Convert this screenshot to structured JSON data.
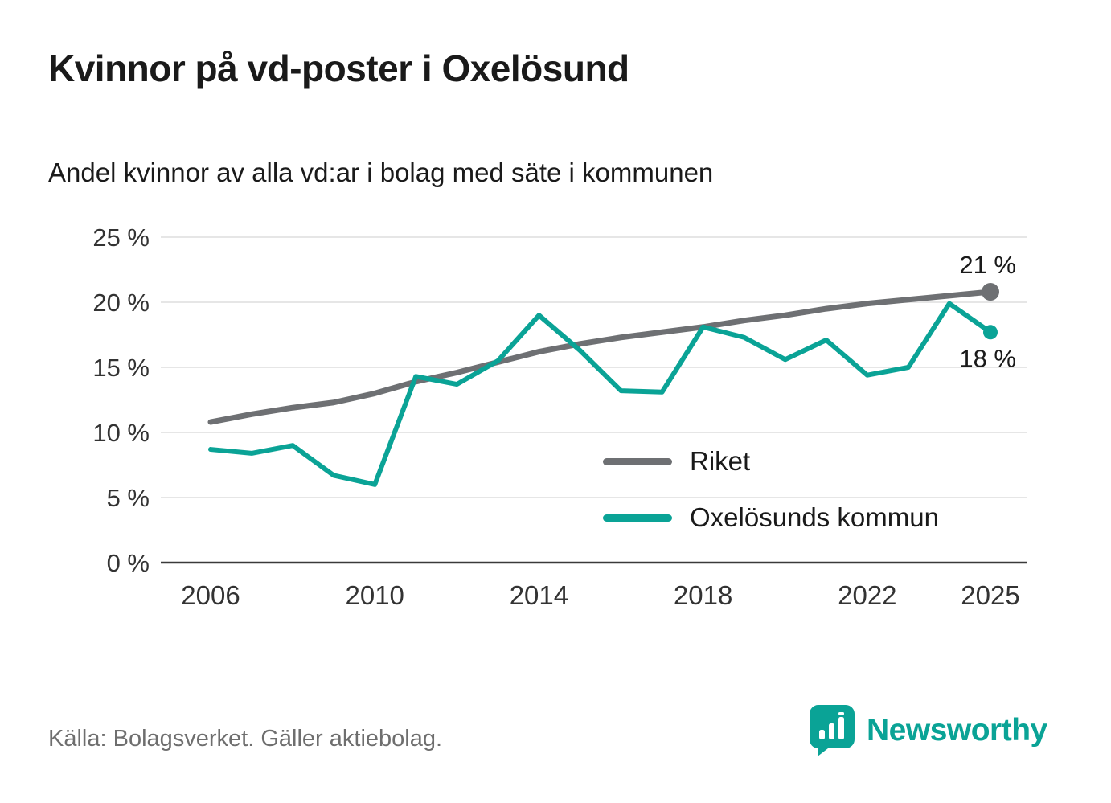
{
  "title": "Kvinnor på vd-poster i Oxelösund",
  "subtitle": "Andel kvinnor av alla vd:ar i bolag med säte i kommunen",
  "source": "Källa: Bolagsverket. Gäller aktiebolag.",
  "brand": {
    "name": "Newsworthy"
  },
  "colors": {
    "riket": "#6e7073",
    "kommun": "#0aa396",
    "grid": "#dddddd",
    "axis_line": "#3a3a3a",
    "tick_text": "#333333",
    "annotation_text": "#1a1a1a",
    "brand_teal": "#0aa396"
  },
  "chart_data": {
    "type": "line",
    "x": [
      2006,
      2007,
      2008,
      2009,
      2010,
      2011,
      2012,
      2013,
      2014,
      2015,
      2016,
      2017,
      2018,
      2019,
      2020,
      2021,
      2022,
      2023,
      2024,
      2025
    ],
    "series": [
      {
        "name": "Riket",
        "color_key": "riket",
        "stroke_width": 7,
        "dot_radius": 11,
        "end_label": "21 %",
        "end_label_side": "above",
        "values": [
          10.8,
          11.4,
          11.9,
          12.3,
          13.0,
          13.9,
          14.6,
          15.4,
          16.2,
          16.8,
          17.3,
          17.7,
          18.1,
          18.6,
          19.0,
          19.5,
          19.9,
          20.2,
          20.5,
          20.8
        ]
      },
      {
        "name": "Oxelösunds kommun",
        "color_key": "kommun",
        "stroke_width": 6,
        "dot_radius": 9,
        "end_label": "18 %",
        "end_label_side": "below",
        "values": [
          8.7,
          8.4,
          9.0,
          6.7,
          6.0,
          14.3,
          13.7,
          15.5,
          19.0,
          16.3,
          13.2,
          13.1,
          18.1,
          17.3,
          15.6,
          17.1,
          14.4,
          15.0,
          19.9,
          17.7
        ]
      }
    ],
    "ylim": [
      0,
      25
    ],
    "yticks": [
      0,
      5,
      10,
      15,
      20,
      25
    ],
    "ytick_suffix": " %",
    "xticks": [
      2006,
      2010,
      2014,
      2018,
      2022,
      2025
    ],
    "grid": true,
    "legend_position": "center-right"
  }
}
